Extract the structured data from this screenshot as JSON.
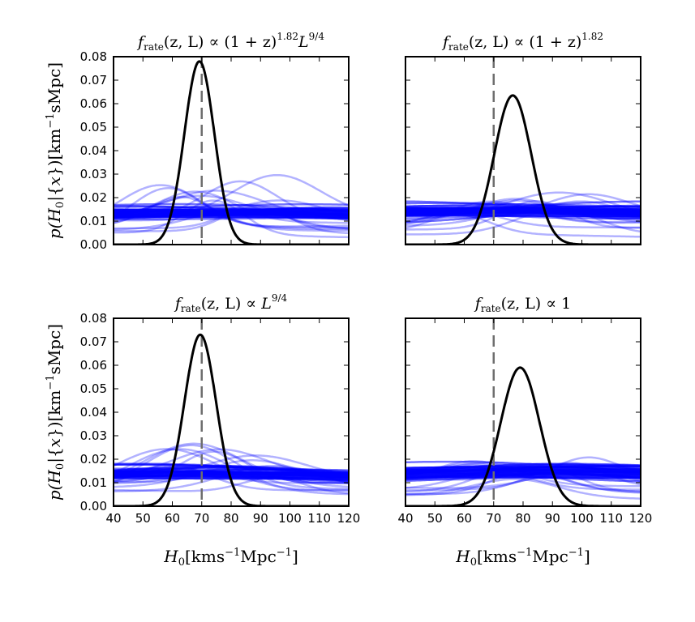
{
  "figure": {
    "xlabel_main": "H",
    "xlabel_sub": "0",
    "xlabel_unit": "[kms",
    "xlabel_unit_sup": "−1",
    "xlabel_unit_mid": "Mpc",
    "xlabel_unit_sup2": "−1",
    "xlabel_unit_end": "]",
    "ylabel_p": "p(",
    "ylabel_H": "H",
    "ylabel_sub": "0",
    "ylabel_cond": "|{",
    "ylabel_x": "x",
    "ylabel_close": "})[km",
    "ylabel_sup": "−1",
    "ylabel_end": "sMpc]"
  },
  "colors": {
    "posterior": "#000000",
    "events": "#0000ff",
    "truth": "#6e6e6e"
  },
  "chart_data": [
    {
      "type": "line",
      "panel": "top-left",
      "title": {
        "f": "f",
        "sub": "rate",
        "args": "(z, L) ∝ (1 + z)",
        "sup": "1.82",
        "tail": "L",
        "tail_sup": "9/4"
      },
      "xlim": [
        40,
        120
      ],
      "ylim": [
        0.0,
        0.08
      ],
      "xticks": [
        "40",
        "50",
        "60",
        "70",
        "80",
        "90",
        "100",
        "110",
        "120"
      ],
      "yticks": [
        "0.00",
        "0.01",
        "0.02",
        "0.03",
        "0.04",
        "0.05",
        "0.06",
        "0.07",
        "0.08"
      ],
      "truth_H0": 70,
      "posterior": {
        "mean": 69.2,
        "sigma": 5.1,
        "peak": 0.078
      },
      "event_series": {
        "count": 40,
        "peak_means": [
          57,
          62,
          68,
          75,
          82,
          88,
          95
        ],
        "peak_max": 0.031,
        "band_center": 0.013
      }
    },
    {
      "type": "line",
      "panel": "top-right",
      "title": {
        "f": "f",
        "sub": "rate",
        "args": "(z, L) ∝ (1 + z)",
        "sup": "1.82",
        "tail": "",
        "tail_sup": ""
      },
      "xlim": [
        40,
        120
      ],
      "ylim": [
        0.0,
        0.08
      ],
      "xticks": [
        "40",
        "50",
        "60",
        "70",
        "80",
        "90",
        "100",
        "110",
        "120"
      ],
      "yticks": [],
      "truth_H0": 70,
      "posterior": {
        "mean": 76.5,
        "sigma": 6.3,
        "peak": 0.0635
      },
      "event_series": {
        "count": 40,
        "peak_means": [
          60,
          68,
          76,
          84,
          92,
          100
        ],
        "peak_max": 0.024,
        "band_center": 0.0135
      }
    },
    {
      "type": "line",
      "panel": "bottom-left",
      "title": {
        "f": "f",
        "sub": "rate",
        "args": "(z, L) ∝ ",
        "sup": "",
        "tail": "L",
        "tail_sup": "9/4"
      },
      "xlim": [
        40,
        120
      ],
      "ylim": [
        0.0,
        0.08
      ],
      "xticks": [
        "40",
        "50",
        "60",
        "70",
        "80",
        "90",
        "100",
        "110",
        "120"
      ],
      "yticks": [
        "0.00",
        "0.01",
        "0.02",
        "0.03",
        "0.04",
        "0.05",
        "0.06",
        "0.07",
        "0.08"
      ],
      "xlabel": true,
      "truth_H0": 70,
      "posterior": {
        "mean": 69.5,
        "sigma": 5.4,
        "peak": 0.073
      },
      "event_series": {
        "count": 40,
        "peak_means": [
          57,
          62,
          68,
          75,
          82,
          88,
          95
        ],
        "peak_max": 0.031,
        "band_center": 0.013
      }
    },
    {
      "type": "line",
      "panel": "bottom-right",
      "title": {
        "f": "f",
        "sub": "rate",
        "args": "(z, L) ∝ 1",
        "sup": "",
        "tail": "",
        "tail_sup": ""
      },
      "xlim": [
        40,
        120
      ],
      "ylim": [
        0.0,
        0.08
      ],
      "xticks": [
        "40",
        "50",
        "60",
        "70",
        "80",
        "90",
        "100",
        "110",
        "120"
      ],
      "yticks": [],
      "xlabel": true,
      "truth_H0": 70,
      "posterior": {
        "mean": 79.0,
        "sigma": 6.6,
        "peak": 0.059
      },
      "event_series": {
        "count": 40,
        "peak_means": [
          62,
          70,
          78,
          86,
          94,
          102
        ],
        "peak_max": 0.024,
        "band_center": 0.0135
      }
    }
  ]
}
